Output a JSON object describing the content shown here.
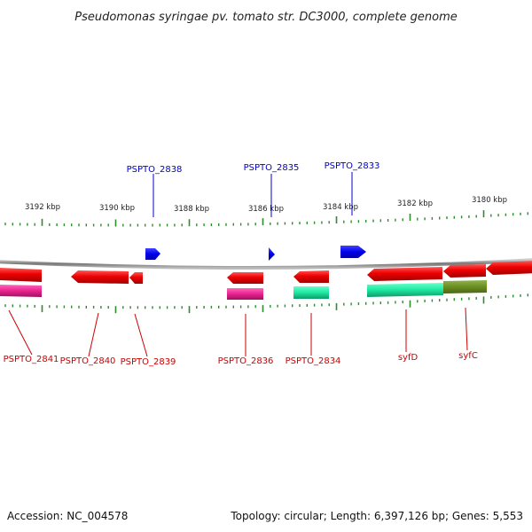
{
  "title": "Pseudomonas syringae pv. tomato str. DC3000, complete genome",
  "kbp_ticks": [
    "3192 kbp",
    "3190 kbp",
    "3188 kbp",
    "3186 kbp",
    "3184 kbp",
    "3182 kbp",
    "3180 kbp"
  ],
  "genes_forward": [
    "PSPTO_2838",
    "PSPTO_2835",
    "PSPTO_2833"
  ],
  "genes_reverse": [
    "PSPTO_2841",
    "PSPTO_2840",
    "PSPTO_2839",
    "PSPTO_2836",
    "PSPTO_2834",
    "syfD",
    "syfC"
  ],
  "footer": {
    "accession": "Accession: NC_004578",
    "summary": "Topology: circular; Length: 6,397,126 bp; Genes: 5,553"
  },
  "colors": {
    "forward_gene": "#0000ee",
    "reverse_gene": "#ee0000",
    "cds_magenta": "#e8238f",
    "cds_green": "#1de7a0",
    "cds_olive": "#6b8e23",
    "backbone": "#888888",
    "tick": "#2e8b2e",
    "label_forward": "#0000cc",
    "label_reverse": "#cc0000"
  }
}
